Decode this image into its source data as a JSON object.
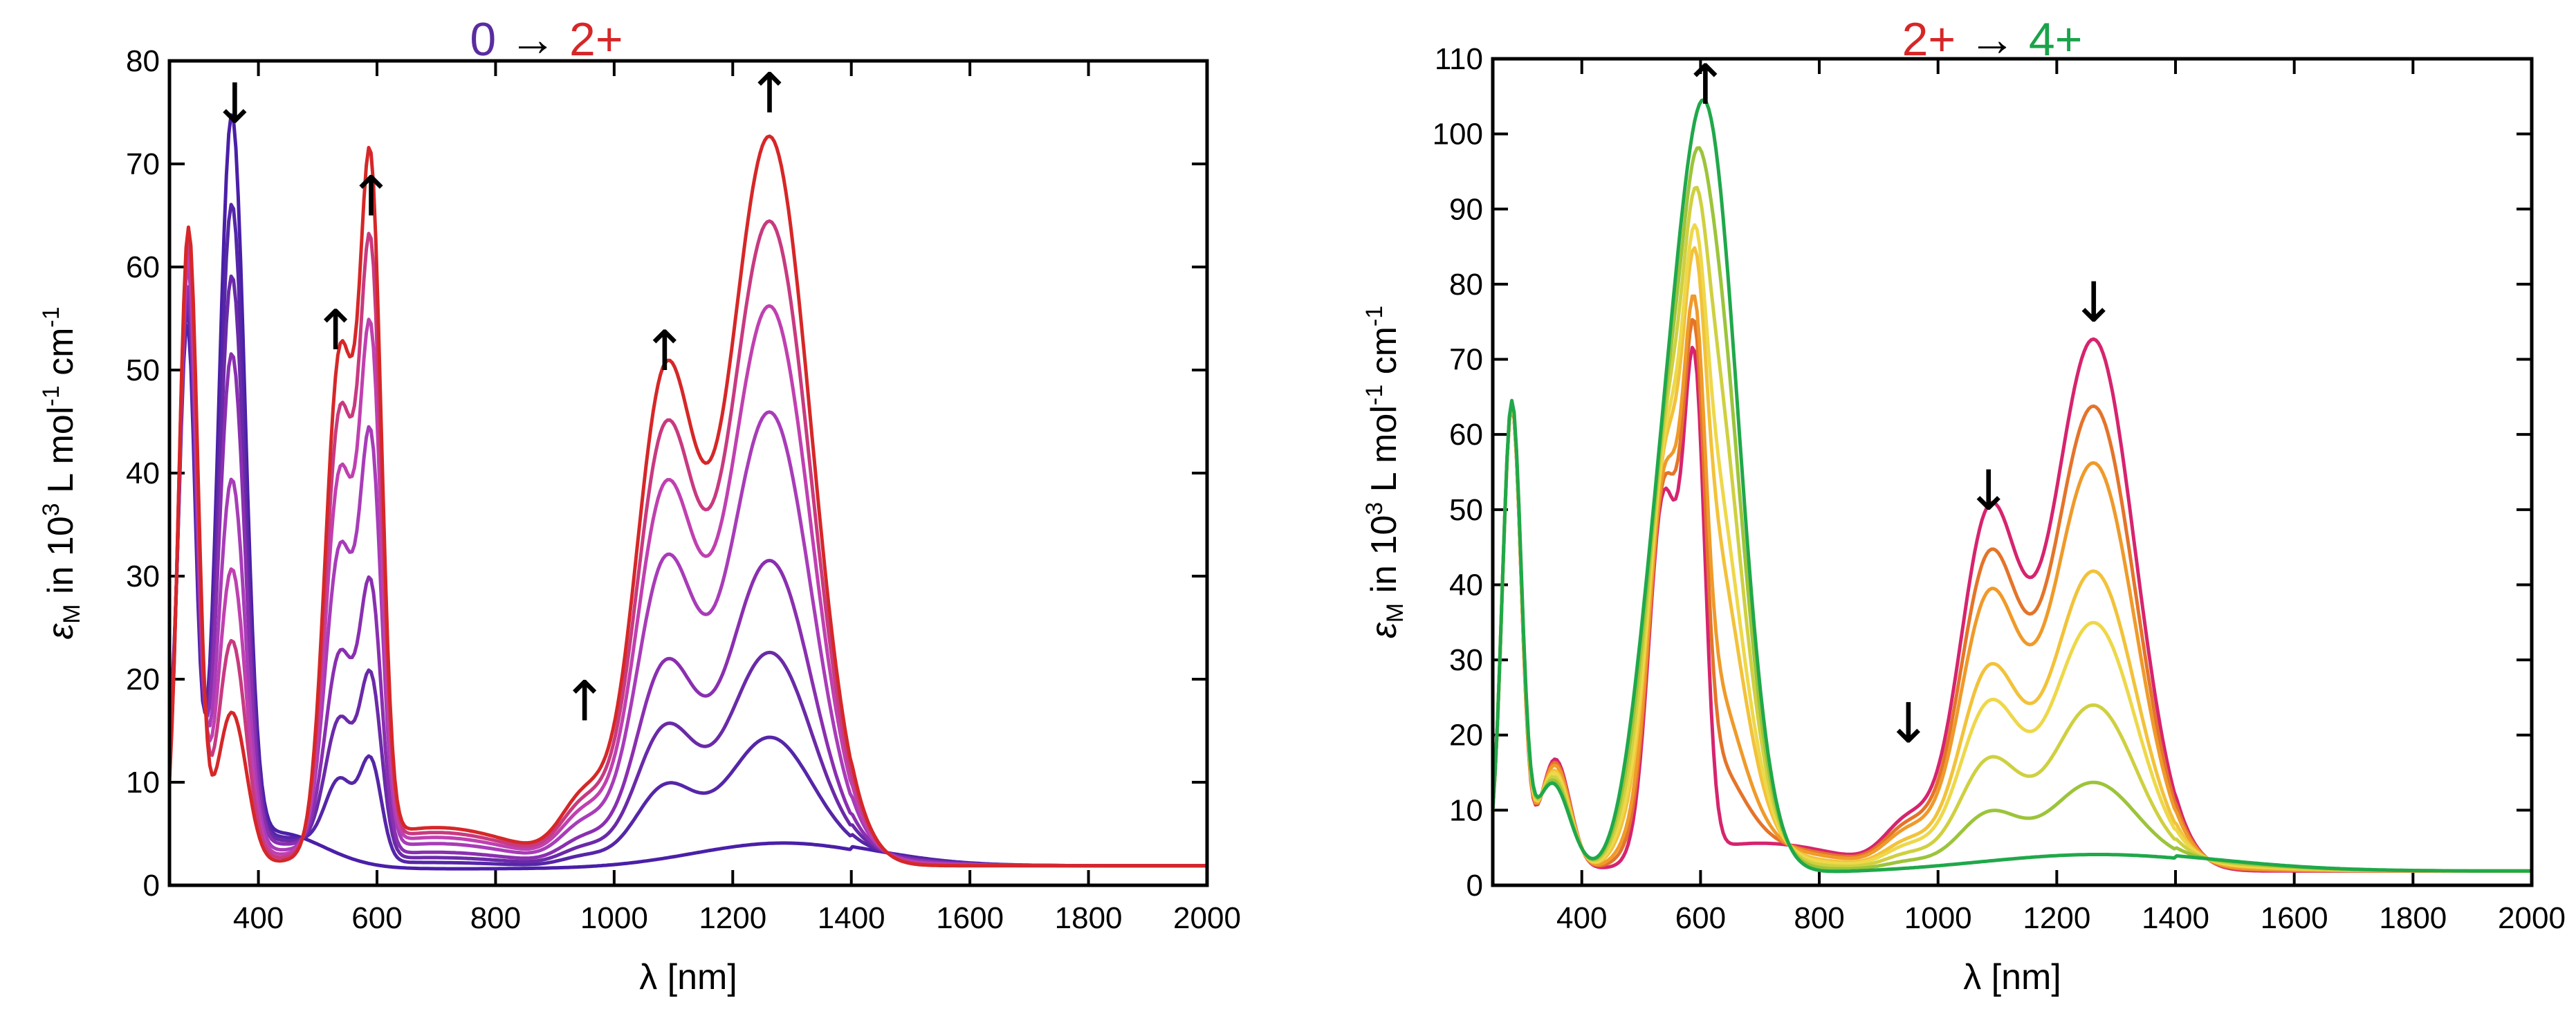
{
  "chart_data": [
    {
      "type": "line",
      "title_segments": [
        {
          "text": "0",
          "color": "#5a2ca0"
        },
        {
          "text": " → ",
          "color": "#000000"
        },
        {
          "text": "2+",
          "color": "#d62728"
        }
      ],
      "xlabel": "λ [nm]",
      "ylabel_parts": {
        "symbol": "ε",
        "sub": "M",
        "mid": " in 10",
        "sup3": "3",
        "unit": " L mol",
        "supm1": "-1",
        "unit2": " cm",
        "supm1b": "-1"
      },
      "xlim": [
        250,
        2000
      ],
      "ylim": [
        0,
        80
      ],
      "xticks": [
        400,
        600,
        800,
        1000,
        1200,
        1400,
        1600,
        1800,
        2000
      ],
      "yticks": [
        0,
        10,
        20,
        30,
        40,
        50,
        60,
        70,
        80
      ],
      "series": [
        {
          "name": "0",
          "color": "#4a1fa8",
          "scale": 0.0
        },
        {
          "name": "step1",
          "color": "#5526a8",
          "scale": 0.15
        },
        {
          "name": "step2",
          "color": "#6a2aa8",
          "scale": 0.27
        },
        {
          "name": "step3",
          "color": "#8a2fb0",
          "scale": 0.4
        },
        {
          "name": "step4",
          "color": "#a83cb8",
          "scale": 0.61
        },
        {
          "name": "step5",
          "color": "#c040b0",
          "scale": 0.76
        },
        {
          "name": "step6",
          "color": "#c83a80",
          "scale": 0.88
        },
        {
          "name": "2+",
          "color": "#d62728",
          "scale": 1.0
        }
      ],
      "peaks": {
        "start": [
          [
            250,
            8,
            12
          ],
          [
            280,
            52,
            14
          ],
          [
            355,
            71,
            22
          ],
          [
            1285,
            2.5,
            150
          ],
          [
            430,
            3.5,
            80
          ]
        ],
        "end": [
          [
            282,
            62,
            16
          ],
          [
            355,
            15,
            25
          ],
          [
            538,
            48,
            25
          ],
          [
            590,
            61,
            18
          ],
          [
            950,
            6,
            40
          ],
          [
            1085,
            46,
            50
          ],
          [
            1262,
            71,
            70
          ],
          [
            700,
            4,
            140
          ]
        ]
      },
      "annotations": [
        {
          "label": "↓",
          "x": 360,
          "y": 74
        },
        {
          "label": "↑",
          "x": 530,
          "y": 52
        },
        {
          "label": "↑",
          "x": 590,
          "y": 65
        },
        {
          "label": "↑",
          "x": 950,
          "y": 16
        },
        {
          "label": "↑",
          "x": 1085,
          "y": 50
        },
        {
          "label": "↑",
          "x": 1262,
          "y": 75
        }
      ]
    },
    {
      "type": "line",
      "title_segments": [
        {
          "text": "2+",
          "color": "#d62728"
        },
        {
          "text": " → ",
          "color": "#000000"
        },
        {
          "text": "4+",
          "color": "#1aa34a"
        }
      ],
      "xlabel": "λ [nm]",
      "ylabel_parts": {
        "symbol": "ε",
        "sub": "M",
        "mid": " in 10",
        "sup3": "3",
        "unit": " L mol",
        "supm1": "-1",
        "unit2": " cm",
        "supm1b": "-1"
      },
      "xlim": [
        250,
        2000
      ],
      "ylim": [
        0,
        110
      ],
      "xticks": [
        400,
        600,
        800,
        1000,
        1200,
        1400,
        1600,
        1800,
        2000
      ],
      "yticks": [
        0,
        10,
        20,
        30,
        40,
        50,
        60,
        70,
        80,
        90,
        100,
        110
      ],
      "series": [
        {
          "name": "2+",
          "color": "#d6246e",
          "scale": 0.0
        },
        {
          "name": "step1",
          "color": "#e4742a",
          "scale": 0.13
        },
        {
          "name": "step2",
          "color": "#ef9a2a",
          "scale": 0.24
        },
        {
          "name": "step3",
          "color": "#f2c23a",
          "scale": 0.45
        },
        {
          "name": "step4",
          "color": "#eed84a",
          "scale": 0.55
        },
        {
          "name": "step5",
          "color": "#cfd040",
          "scale": 0.71
        },
        {
          "name": "step6",
          "color": "#9cc43a",
          "scale": 0.86
        },
        {
          "name": "4+",
          "color": "#20a84a",
          "scale": 1.0
        }
      ],
      "peaks": {
        "start": [
          [
            282,
            62,
            16
          ],
          [
            355,
            15,
            25
          ],
          [
            538,
            48,
            25
          ],
          [
            590,
            61,
            18
          ],
          [
            950,
            6,
            40
          ],
          [
            1085,
            46,
            50
          ],
          [
            1262,
            71,
            70
          ],
          [
            700,
            4,
            140
          ]
        ],
        "end": [
          [
            282,
            62,
            16
          ],
          [
            350,
            12,
            30
          ],
          [
            520,
            20,
            40
          ],
          [
            608,
            101,
            55
          ],
          [
            1270,
            2.5,
            200
          ]
        ]
      },
      "annotations": [
        {
          "label": "↑",
          "x": 608,
          "y": 104
        },
        {
          "label": "↓",
          "x": 950,
          "y": 19
        },
        {
          "label": "↓",
          "x": 1085,
          "y": 50
        },
        {
          "label": "↓",
          "x": 1262,
          "y": 75
        }
      ]
    }
  ]
}
